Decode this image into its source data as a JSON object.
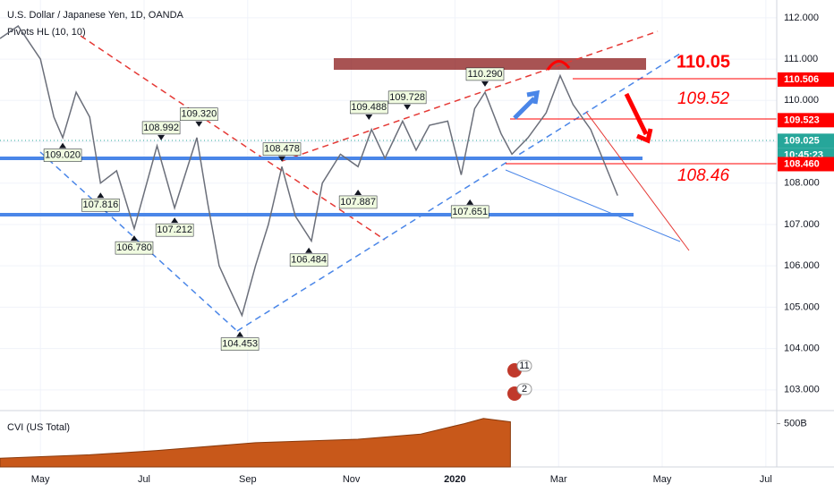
{
  "chart_data": {
    "type": "line",
    "title": "U.S. Dollar / Japanese Yen, 1D, OANDA",
    "subtitle": "Pivots HL (10, 10)",
    "xlim": [
      -0.78,
      14.21
    ],
    "xticks": [
      {
        "value": 0,
        "label": "May"
      },
      {
        "value": 2,
        "label": "Jul"
      },
      {
        "value": 4,
        "label": "Sep"
      },
      {
        "value": 6,
        "label": "Nov"
      },
      {
        "value": 8,
        "label": "2020"
      },
      {
        "value": 10,
        "label": "Mar"
      },
      {
        "value": 12,
        "label": "May"
      },
      {
        "value": 14,
        "label": "Jul"
      }
    ],
    "ylim": [
      102.52,
      112.43
    ],
    "yticks": [
      {
        "value": 103,
        "label": "103.000"
      },
      {
        "value": 104,
        "label": "104.000"
      },
      {
        "value": 105,
        "label": "105.000"
      },
      {
        "value": 106,
        "label": "106.000"
      },
      {
        "value": 107,
        "label": "107.000"
      },
      {
        "value": 108,
        "label": "108.000"
      },
      {
        "value": 109,
        "label": "109.000"
      },
      {
        "value": 110,
        "label": "110.000"
      },
      {
        "value": 111,
        "label": "111.000"
      },
      {
        "value": 112,
        "label": "112.000"
      }
    ],
    "grid": true,
    "series": [
      {
        "name": "USDJPY",
        "color": "#6b6f7a",
        "x": [
          -0.78,
          -0.43,
          0,
          0.26,
          0.43,
          0.69,
          0.95,
          1.16,
          1.47,
          1.81,
          2.25,
          2.59,
          3.02,
          3.23,
          3.45,
          3.63,
          3.89,
          4.15,
          4.4,
          4.66,
          4.92,
          5.23,
          5.44,
          5.79,
          6.13,
          6.39,
          6.65,
          6.99,
          7.25,
          7.51,
          7.86,
          8.12,
          8.38,
          8.58,
          8.89,
          9.1,
          9.41,
          9.76,
          10.03,
          10.28,
          10.62,
          10.88,
          11.14
        ],
        "values": [
          111.5,
          111.8,
          111.0,
          109.6,
          109.1,
          110.2,
          109.6,
          108.0,
          108.3,
          106.9,
          108.9,
          107.4,
          109.1,
          107.5,
          106.0,
          105.5,
          104.8,
          106.0,
          107.0,
          108.4,
          107.2,
          106.6,
          108.0,
          108.7,
          108.4,
          109.3,
          108.6,
          109.5,
          108.8,
          109.4,
          109.5,
          108.2,
          109.8,
          110.2,
          109.2,
          108.7,
          109.1,
          109.7,
          110.6,
          109.9,
          109.3,
          108.5,
          107.7
        ]
      }
    ],
    "pivots": [
      {
        "x": 0.43,
        "value": 109.02,
        "label": "109.020",
        "kind": "low"
      },
      {
        "x": 1.16,
        "value": 107.816,
        "label": "107.816",
        "kind": "low"
      },
      {
        "x": 1.81,
        "value": 106.78,
        "label": "106.780",
        "kind": "low"
      },
      {
        "x": 2.33,
        "value": 108.992,
        "label": "108.992",
        "kind": "high"
      },
      {
        "x": 2.59,
        "value": 107.212,
        "label": "107.212",
        "kind": "low"
      },
      {
        "x": 3.06,
        "value": 109.32,
        "label": "109.320",
        "kind": "high"
      },
      {
        "x": 3.85,
        "value": 104.453,
        "label": "104.453",
        "kind": "low"
      },
      {
        "x": 4.66,
        "value": 108.478,
        "label": "108.478",
        "kind": "high"
      },
      {
        "x": 5.18,
        "value": 106.484,
        "label": "106.484",
        "kind": "low"
      },
      {
        "x": 6.13,
        "value": 107.887,
        "label": "107.887",
        "kind": "low"
      },
      {
        "x": 6.34,
        "value": 109.488,
        "label": "109.488",
        "kind": "high"
      },
      {
        "x": 7.08,
        "value": 109.728,
        "label": "109.728",
        "kind": "high"
      },
      {
        "x": 8.29,
        "value": 107.651,
        "label": "107.651",
        "kind": "low"
      },
      {
        "x": 8.58,
        "value": 110.29,
        "label": "110.290",
        "kind": "high"
      }
    ],
    "price_labels": [
      {
        "value": 110.506,
        "color": "#ff0000"
      },
      {
        "value": 109.523,
        "color": "#ff0000"
      },
      {
        "value": 109.025,
        "color": "#26a69a"
      },
      {
        "value": 108.46,
        "label": "108.460",
        "color": "#ff0000"
      }
    ],
    "countdown": "10:45:23",
    "annotations": [
      "110.05",
      "109.52",
      "108.46"
    ],
    "event_badges": [
      11,
      2
    ],
    "cvi": {
      "title": "CVI (US Total)",
      "color": "#c8581a",
      "ylim": [
        0,
        640
      ],
      "yticks": [
        {
          "value": 500,
          "label": "500B"
        }
      ],
      "x": [
        -0.78,
        0.95,
        2.25,
        4.15,
        6.13,
        7.34,
        8.18,
        8.55,
        9.07
      ],
      "values": [
        100,
        140,
        190,
        280,
        320,
        380,
        500,
        560,
        520
      ]
    }
  }
}
